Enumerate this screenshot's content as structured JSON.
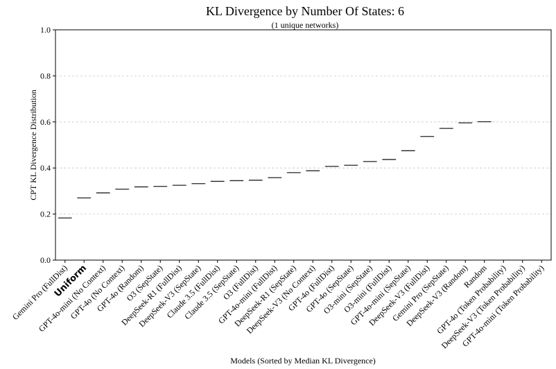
{
  "chart_data": {
    "type": "box",
    "title": "KL Divergence by Number Of States: 6",
    "subtitle": "(1 unique networks)",
    "xlabel": "Models (Sorted by Median KL Divergence)",
    "ylabel": "CPT KL Divergence Distribution",
    "ylim": [
      0.0,
      1.0
    ],
    "yticks": [
      0.0,
      0.2,
      0.4,
      0.6,
      0.8,
      1.0
    ],
    "ytick_labels": [
      "0.0",
      "0.2",
      "0.4",
      "0.6",
      "0.8",
      "1.0"
    ],
    "grid": "horizontal-dashed",
    "highlight_category": "Uniform",
    "categories": [
      "Gemini Pro (FullDist)",
      "Uniform",
      "GPT-4o-mini (No Context)",
      "GPT-4o (No Context)",
      "GPT-4o (Random)",
      "O3 (SepState)",
      "DeepSeek-R1 (FullDist)",
      "DeepSeek-V3 (SepState)",
      "Claude 3.5 (FullDist)",
      "Claude 3.5 (SepState)",
      "O3 (FullDist)",
      "GPT-4o-mini (FullDist)",
      "DeepSeek-R1 (SepState)",
      "DeepSeek-V3 (No Context)",
      "GPT-4o (FullDist)",
      "GPT-4o (SepState)",
      "O3-mini (SepState)",
      "O3-mini (FullDist)",
      "GPT-4o-mini (SepState)",
      "DeepSeek-V3 (FullDist)",
      "Gemini Pro (SepState)",
      "DeepSeek-V3 (Random)",
      "Random",
      "GPT-4o (Token Probability)",
      "DeepSeek-V3 (Token Probability)",
      "GPT-4o-mini (Token Probability)"
    ],
    "medians": [
      0.183,
      0.27,
      0.292,
      0.308,
      0.318,
      0.32,
      0.325,
      0.332,
      0.342,
      0.345,
      0.347,
      0.358,
      0.38,
      0.388,
      0.407,
      0.412,
      0.428,
      0.437,
      0.475,
      0.537,
      0.572,
      0.596,
      0.601,
      null,
      null,
      null
    ]
  }
}
